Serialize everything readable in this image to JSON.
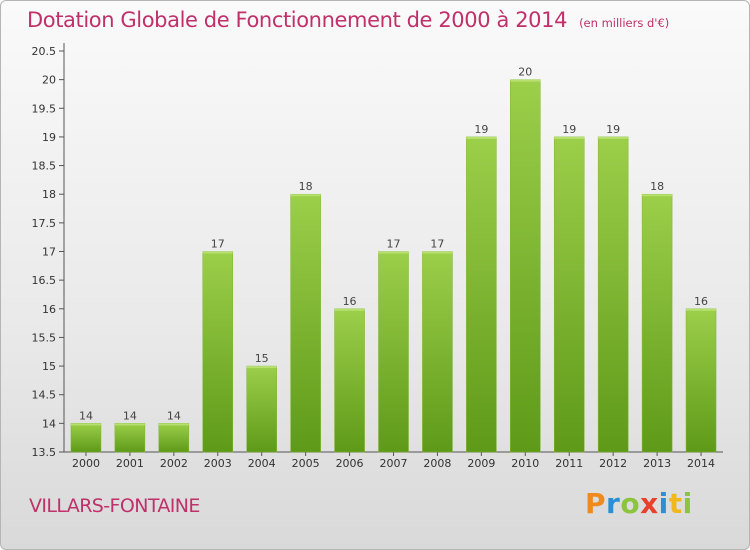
{
  "chart_data": {
    "type": "bar",
    "title": "Dotation Globale de Fonctionnement de 2000 à 2014",
    "subtitle": "(en milliers d'€)",
    "categories": [
      "2000",
      "2001",
      "2002",
      "2003",
      "2004",
      "2005",
      "2006",
      "2007",
      "2008",
      "2009",
      "2010",
      "2011",
      "2012",
      "2013",
      "2014"
    ],
    "values": [
      14,
      14,
      14,
      17,
      15,
      18,
      16,
      17,
      17,
      19,
      20,
      19,
      19,
      18,
      16
    ],
    "ylim": [
      13.5,
      20.5
    ],
    "yticks": [
      "13.5",
      "14",
      "14.5",
      "15",
      "15.5",
      "16",
      "16.5",
      "17",
      "17.5",
      "18",
      "18.5",
      "19",
      "19.5",
      "20",
      "20.5"
    ],
    "grid": false,
    "bar_color": "#8cc43c",
    "bar_color_dark": "#5e9a18"
  },
  "place_name": "VILLARS-FONTAINE",
  "logo": {
    "text": "Proxiti",
    "letters": [
      {
        "ch": "P",
        "color": "#f08a1c"
      },
      {
        "ch": "r",
        "color": "#2a8fd6"
      },
      {
        "ch": "o",
        "color": "#8cc43c"
      },
      {
        "ch": "x",
        "color": "#e8402a"
      },
      {
        "ch": "i",
        "color": "#2a8fd6"
      },
      {
        "ch": "t",
        "color": "#f0b81c"
      },
      {
        "ch": "i",
        "color": "#8cc43c"
      }
    ]
  },
  "colors": {
    "accent": "#c0306a",
    "axis": "#555555"
  }
}
